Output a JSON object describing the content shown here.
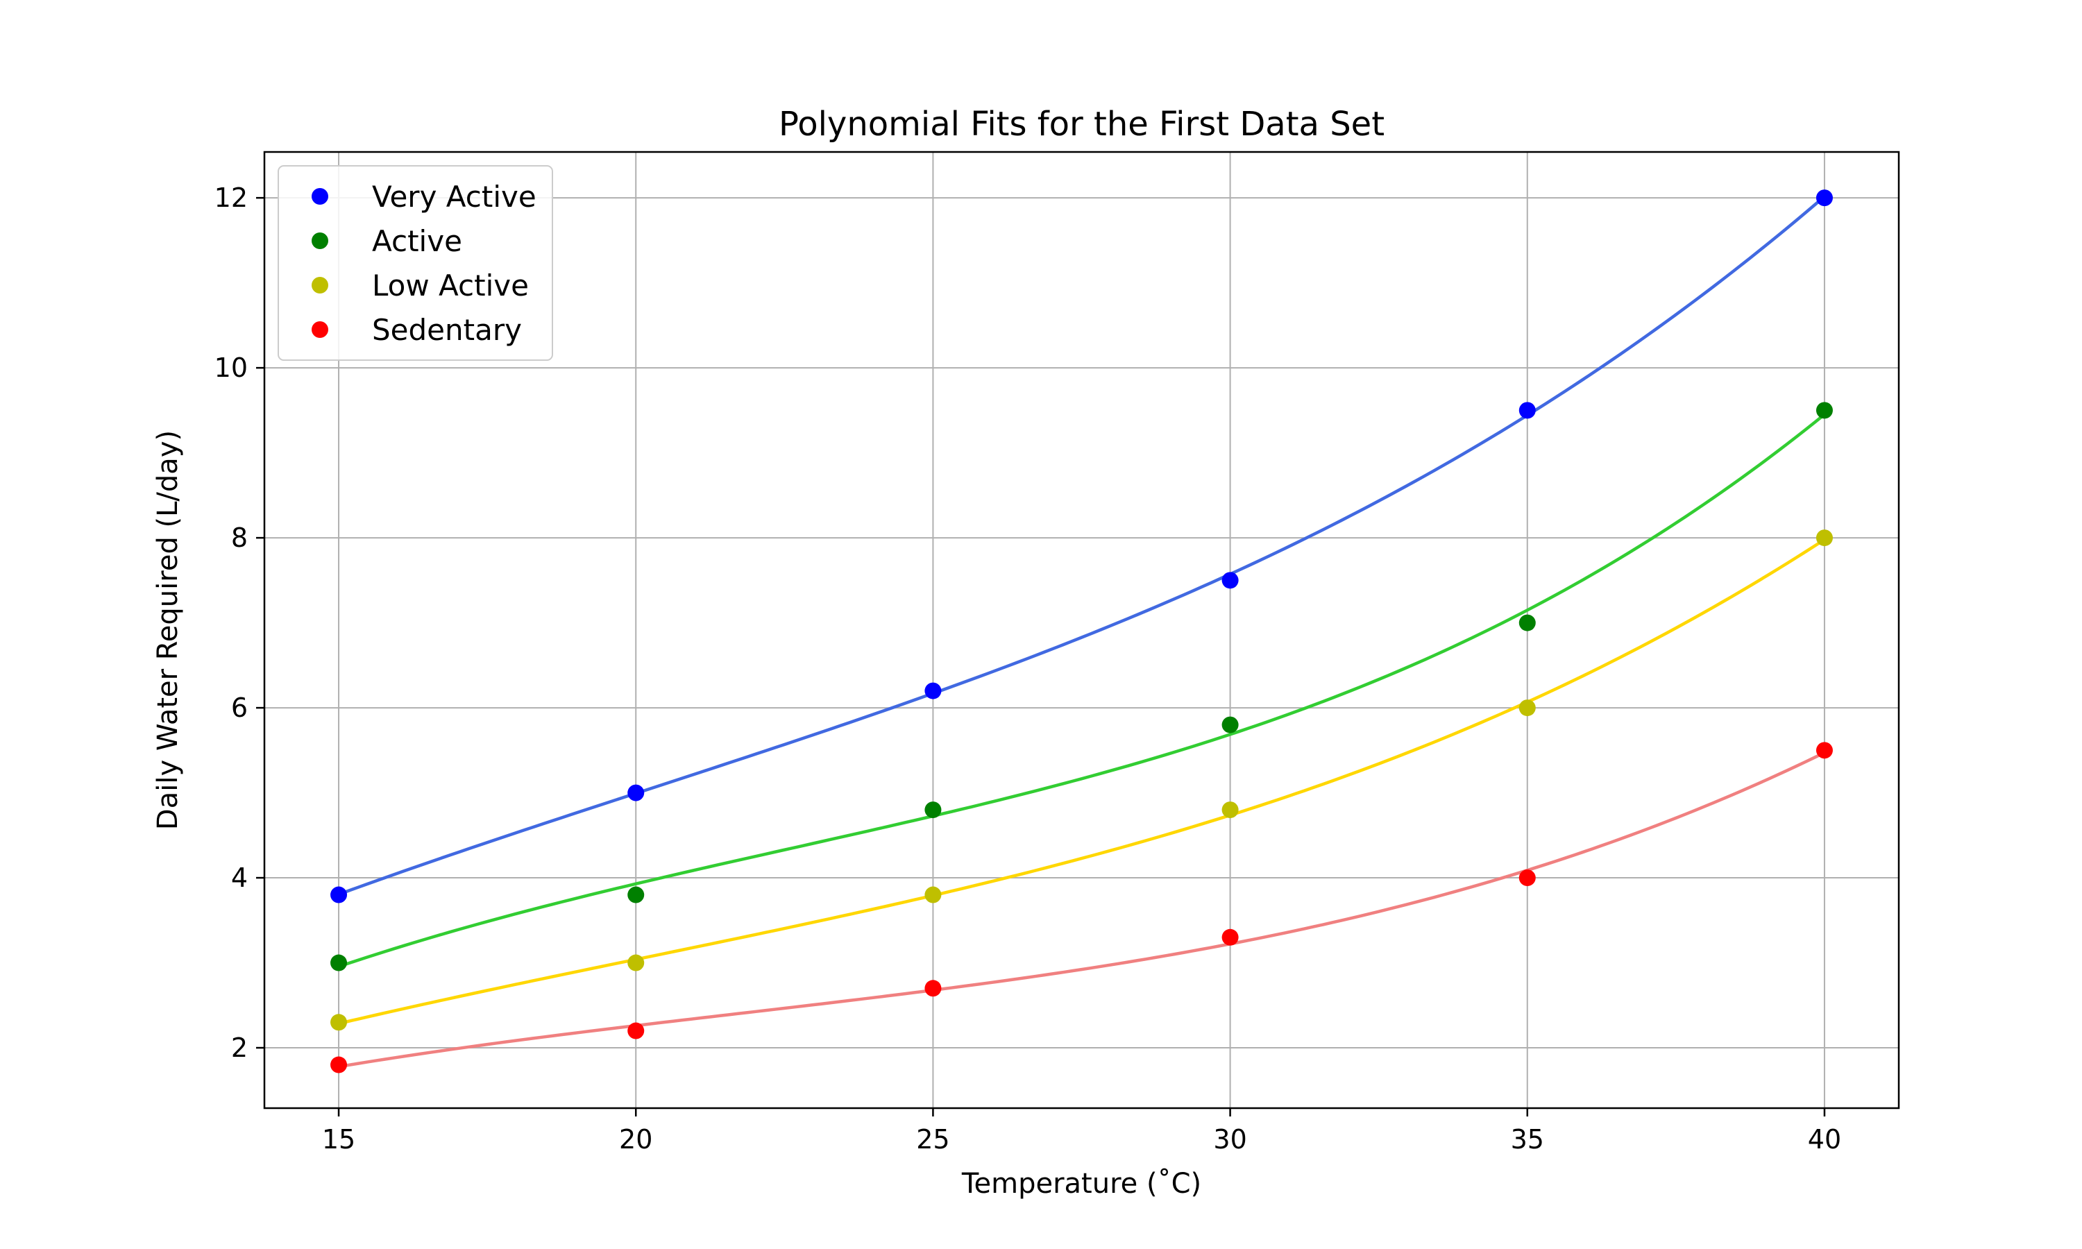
{
  "chart_data": {
    "type": "line",
    "title": "Polynomial Fits for the First Data Set",
    "xlabel": "Temperature (˚C)",
    "ylabel": "Daily Water Required (L/day)",
    "xlim": [
      13.75,
      41.25
    ],
    "ylim": [
      1.29,
      12.54
    ],
    "x_ticks": [
      15,
      20,
      25,
      30,
      35,
      40
    ],
    "y_ticks": [
      2,
      4,
      6,
      8,
      10,
      12
    ],
    "grid": true,
    "legend_position": "upper-left",
    "x": [
      15,
      20,
      25,
      30,
      35,
      40
    ],
    "series": [
      {
        "name": "Very Active",
        "values": [
          3.8,
          5.0,
          6.2,
          7.5,
          9.5,
          12.0
        ],
        "marker_color": "#0000ff",
        "line_color": "#4169e1"
      },
      {
        "name": "Active",
        "values": [
          3.0,
          3.8,
          4.8,
          5.8,
          7.0,
          9.5
        ],
        "marker_color": "#008000",
        "line_color": "#32cd32"
      },
      {
        "name": "Low Active",
        "values": [
          2.3,
          3.0,
          3.8,
          4.8,
          6.0,
          8.0
        ],
        "marker_color": "#bfbf00",
        "line_color": "#ffd700"
      },
      {
        "name": "Sedentary",
        "values": [
          1.8,
          2.2,
          2.7,
          3.3,
          4.0,
          5.5
        ],
        "marker_color": "#ff0000",
        "line_color": "#f08080"
      }
    ]
  },
  "colors": {
    "grid": "#b0b0b0",
    "axes": "#000000",
    "legend_border": "#cccccc"
  }
}
